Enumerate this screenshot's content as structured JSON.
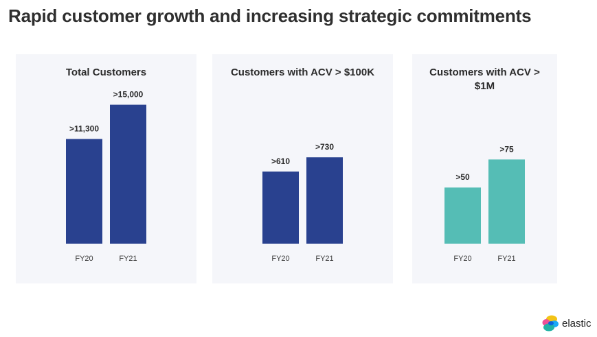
{
  "title": "Rapid customer growth and increasing strategic commitments",
  "logo_text": "elastic",
  "chart_data": [
    {
      "type": "bar",
      "title": "Total Customers",
      "categories": [
        "FY20",
        "FY21"
      ],
      "values": [
        11300,
        15000
      ],
      "labels": [
        ">11,300",
        ">15,000"
      ],
      "ylim": [
        0,
        16600
      ],
      "color": "#29418f",
      "grid": false
    },
    {
      "type": "bar",
      "title": "Customers with ACV > $100K",
      "categories": [
        "FY20",
        "FY21"
      ],
      "values": [
        610,
        730
      ],
      "labels": [
        ">610",
        ">730"
      ],
      "ylim": [
        0,
        1300
      ],
      "color": "#29418f",
      "grid": false
    },
    {
      "type": "bar",
      "title": "Customers with ACV > $1M",
      "categories": [
        "FY20",
        "FY21"
      ],
      "values": [
        50,
        75
      ],
      "labels": [
        ">50",
        ">75"
      ],
      "ylim": [
        0,
        137
      ],
      "color": "#55bdb5",
      "grid": false
    }
  ]
}
